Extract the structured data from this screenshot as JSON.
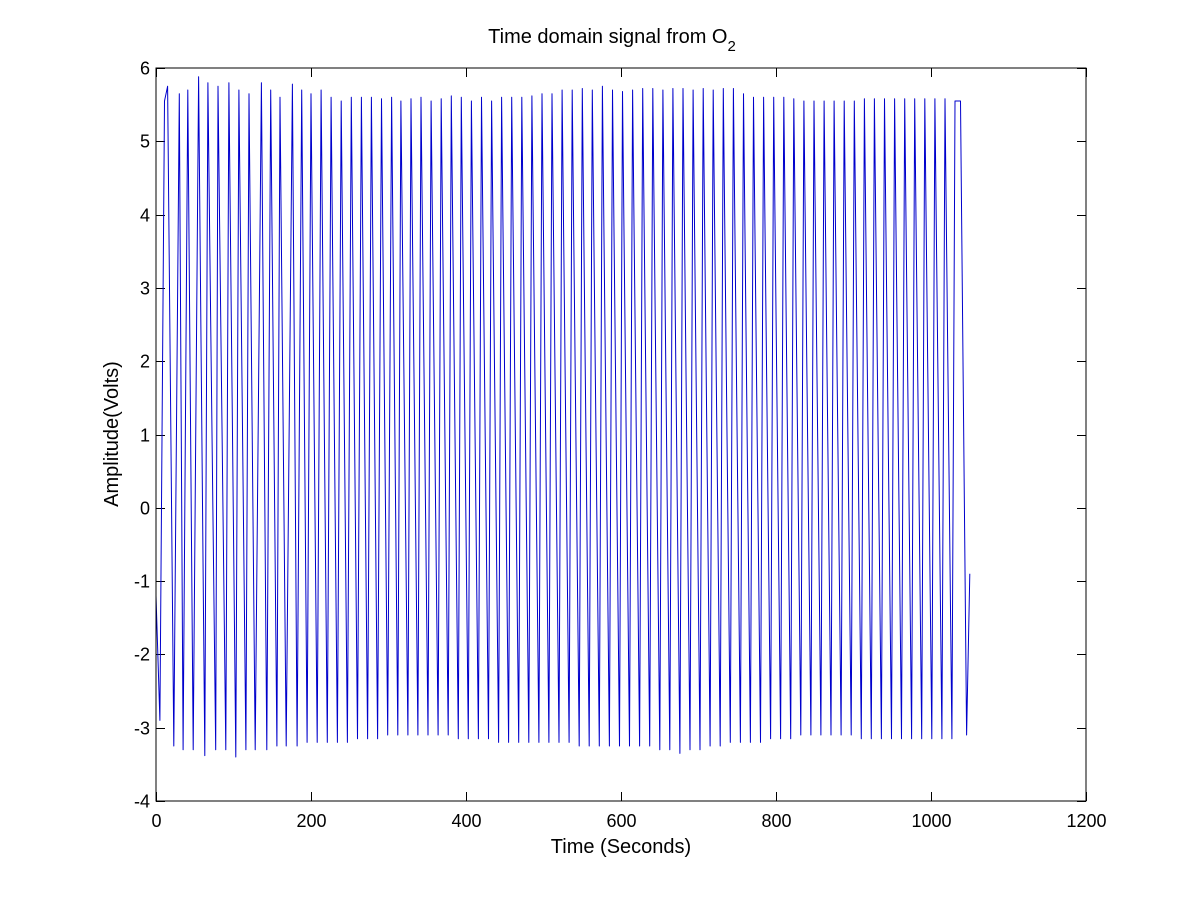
{
  "chart_data": {
    "type": "line",
    "title_main": "Time domain signal from O",
    "title_subscript": "2",
    "xlabel": "Time (Seconds)",
    "ylabel": "Amplitude(Volts)",
    "xlim": [
      0,
      1200
    ],
    "ylim": [
      -4,
      6
    ],
    "xticks": [
      0,
      200,
      400,
      600,
      800,
      1000,
      1200
    ],
    "yticks": [
      -4,
      -3,
      -2,
      -1,
      0,
      1,
      2,
      3,
      4,
      5,
      6
    ],
    "xtick_labels": [
      "0",
      "200",
      "400",
      "600",
      "800",
      "1000",
      "1200"
    ],
    "ytick_labels": [
      "-4",
      "-3",
      "-2",
      "-1",
      "0",
      "1",
      "2",
      "3",
      "4",
      "5",
      "6"
    ],
    "grid": false,
    "legend": "none",
    "line_color": "#0000cc",
    "series": [
      {
        "start": {
          "x": 0,
          "y": -1.2
        },
        "end": {
          "x": 1050,
          "y": -0.9
        },
        "peaks": [
          [
            11,
            5.55
          ],
          [
            15,
            5.75
          ],
          [
            30,
            5.65
          ],
          [
            41,
            5.7
          ],
          [
            55,
            5.88
          ],
          [
            67,
            5.8
          ],
          [
            80,
            5.75
          ],
          [
            94,
            5.8
          ],
          [
            107,
            5.7
          ],
          [
            120,
            5.65
          ],
          [
            136,
            5.8
          ],
          [
            148,
            5.7
          ],
          [
            160,
            5.6
          ],
          [
            176,
            5.78
          ],
          [
            188,
            5.7
          ],
          [
            200,
            5.65
          ],
          [
            213,
            5.7
          ],
          [
            226,
            5.6
          ],
          [
            239,
            5.55
          ],
          [
            252,
            5.6
          ],
          [
            265,
            5.6
          ],
          [
            278,
            5.6
          ],
          [
            291,
            5.58
          ],
          [
            304,
            5.6
          ],
          [
            316,
            5.55
          ],
          [
            329,
            5.58
          ],
          [
            342,
            5.6
          ],
          [
            355,
            5.55
          ],
          [
            368,
            5.58
          ],
          [
            381,
            5.62
          ],
          [
            394,
            5.6
          ],
          [
            407,
            5.55
          ],
          [
            420,
            5.6
          ],
          [
            433,
            5.55
          ],
          [
            446,
            5.6
          ],
          [
            459,
            5.6
          ],
          [
            472,
            5.6
          ],
          [
            485,
            5.62
          ],
          [
            498,
            5.65
          ],
          [
            511,
            5.65
          ],
          [
            524,
            5.7
          ],
          [
            537,
            5.7
          ],
          [
            550,
            5.72
          ],
          [
            563,
            5.7
          ],
          [
            576,
            5.75
          ],
          [
            589,
            5.7
          ],
          [
            602,
            5.68
          ],
          [
            615,
            5.7
          ],
          [
            628,
            5.72
          ],
          [
            641,
            5.72
          ],
          [
            654,
            5.7
          ],
          [
            667,
            5.72
          ],
          [
            680,
            5.72
          ],
          [
            693,
            5.7
          ],
          [
            706,
            5.72
          ],
          [
            719,
            5.7
          ],
          [
            732,
            5.72
          ],
          [
            745,
            5.72
          ],
          [
            758,
            5.65
          ],
          [
            771,
            5.6
          ],
          [
            784,
            5.6
          ],
          [
            797,
            5.6
          ],
          [
            810,
            5.6
          ],
          [
            823,
            5.58
          ],
          [
            836,
            5.55
          ],
          [
            849,
            5.55
          ],
          [
            862,
            5.55
          ],
          [
            875,
            5.55
          ],
          [
            888,
            5.55
          ],
          [
            901,
            5.55
          ],
          [
            914,
            5.58
          ],
          [
            927,
            5.58
          ],
          [
            940,
            5.58
          ],
          [
            953,
            5.58
          ],
          [
            966,
            5.58
          ],
          [
            979,
            5.58
          ],
          [
            992,
            5.58
          ],
          [
            1005,
            5.58
          ],
          [
            1018,
            5.58
          ],
          [
            1031,
            5.55
          ],
          [
            1038,
            5.55
          ]
        ],
        "troughs": [
          [
            5,
            -2.9
          ],
          [
            23,
            -3.25
          ],
          [
            35,
            -3.3
          ],
          [
            48,
            -3.3
          ],
          [
            63,
            -3.38
          ],
          [
            77,
            -3.3
          ],
          [
            90,
            -3.3
          ],
          [
            103,
            -3.4
          ],
          [
            116,
            -3.3
          ],
          [
            128,
            -3.3
          ],
          [
            143,
            -3.3
          ],
          [
            156,
            -3.25
          ],
          [
            168,
            -3.25
          ],
          [
            182,
            -3.25
          ],
          [
            195,
            -3.2
          ],
          [
            208,
            -3.2
          ],
          [
            221,
            -3.2
          ],
          [
            234,
            -3.2
          ],
          [
            247,
            -3.2
          ],
          [
            260,
            -3.15
          ],
          [
            273,
            -3.15
          ],
          [
            286,
            -3.15
          ],
          [
            299,
            -3.1
          ],
          [
            312,
            -3.1
          ],
          [
            325,
            -3.1
          ],
          [
            338,
            -3.1
          ],
          [
            351,
            -3.1
          ],
          [
            364,
            -3.1
          ],
          [
            377,
            -3.1
          ],
          [
            390,
            -3.15
          ],
          [
            403,
            -3.15
          ],
          [
            416,
            -3.15
          ],
          [
            429,
            -3.15
          ],
          [
            442,
            -3.2
          ],
          [
            455,
            -3.2
          ],
          [
            468,
            -3.2
          ],
          [
            481,
            -3.2
          ],
          [
            494,
            -3.2
          ],
          [
            507,
            -3.2
          ],
          [
            520,
            -3.2
          ],
          [
            533,
            -3.2
          ],
          [
            546,
            -3.25
          ],
          [
            559,
            -3.25
          ],
          [
            572,
            -3.25
          ],
          [
            585,
            -3.25
          ],
          [
            598,
            -3.25
          ],
          [
            611,
            -3.25
          ],
          [
            624,
            -3.25
          ],
          [
            637,
            -3.25
          ],
          [
            650,
            -3.3
          ],
          [
            663,
            -3.3
          ],
          [
            676,
            -3.35
          ],
          [
            689,
            -3.3
          ],
          [
            702,
            -3.3
          ],
          [
            715,
            -3.25
          ],
          [
            728,
            -3.25
          ],
          [
            741,
            -3.2
          ],
          [
            754,
            -3.2
          ],
          [
            767,
            -3.2
          ],
          [
            780,
            -3.2
          ],
          [
            793,
            -3.15
          ],
          [
            806,
            -3.15
          ],
          [
            819,
            -3.15
          ],
          [
            832,
            -3.1
          ],
          [
            845,
            -3.1
          ],
          [
            858,
            -3.1
          ],
          [
            871,
            -3.1
          ],
          [
            884,
            -3.1
          ],
          [
            897,
            -3.1
          ],
          [
            910,
            -3.15
          ],
          [
            923,
            -3.15
          ],
          [
            936,
            -3.15
          ],
          [
            949,
            -3.15
          ],
          [
            962,
            -3.15
          ],
          [
            975,
            -3.15
          ],
          [
            988,
            -3.15
          ],
          [
            1001,
            -3.15
          ],
          [
            1014,
            -3.15
          ],
          [
            1027,
            -3.15
          ],
          [
            1046,
            -3.1
          ]
        ]
      }
    ]
  }
}
